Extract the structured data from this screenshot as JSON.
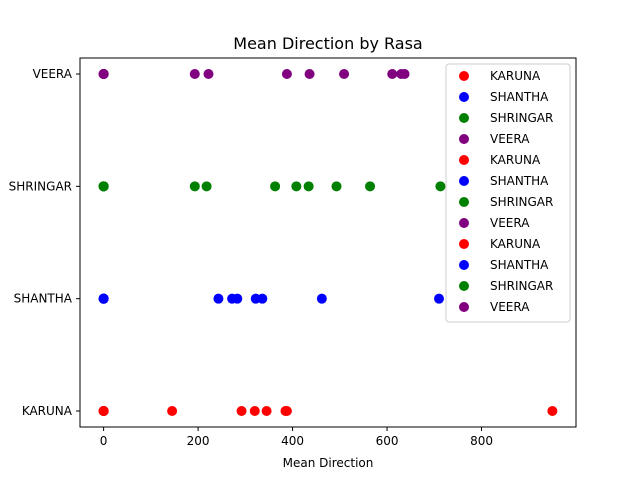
{
  "chart_data": {
    "type": "scatter",
    "title": "Mean Direction by Rasa",
    "xlabel": "Mean Direction",
    "ylabel": "",
    "xlim": [
      -50,
      1000
    ],
    "xticks": [
      0,
      200,
      400,
      600,
      800
    ],
    "categories": [
      "KARUNA",
      "SHANTHA",
      "SHRINGAR",
      "VEERA"
    ],
    "series": [
      {
        "name": "KARUNA",
        "color": "#ff0000",
        "category": "KARUNA",
        "x": [
          0,
          0,
          0,
          145,
          292,
          320,
          345,
          385,
          388
        ]
      },
      {
        "name": "SHANTHA",
        "color": "#0000ff",
        "category": "SHANTHA",
        "x": [
          0,
          0,
          0,
          243,
          272,
          283,
          322,
          336,
          462,
          710
        ]
      },
      {
        "name": "SHRINGAR",
        "color": "#008000",
        "category": "SHRINGAR",
        "x": [
          0,
          0,
          0,
          193,
          218,
          363,
          408,
          434,
          493,
          564,
          713
        ]
      },
      {
        "name": "VEERA",
        "color": "#800080",
        "category": "VEERA",
        "x": [
          0,
          0,
          0,
          193,
          222,
          388,
          436,
          509,
          611,
          630,
          637
        ]
      },
      {
        "name": "KARUNA",
        "color": "#ff0000",
        "category": "KARUNA",
        "x": [
          0,
          950
        ]
      },
      {
        "name": "SHANTHA",
        "color": "#0000ff",
        "category": "SHANTHA",
        "x": [
          0
        ]
      },
      {
        "name": "SHRINGAR",
        "color": "#008000",
        "category": "SHRINGAR",
        "x": [
          0
        ]
      },
      {
        "name": "VEERA",
        "color": "#800080",
        "category": "VEERA",
        "x": [
          0
        ]
      },
      {
        "name": "KARUNA",
        "color": "#ff0000",
        "category": "KARUNA",
        "x": [
          0
        ]
      },
      {
        "name": "SHANTHA",
        "color": "#0000ff",
        "category": "SHANTHA",
        "x": [
          0
        ]
      },
      {
        "name": "SHRINGAR",
        "color": "#008000",
        "category": "SHRINGAR",
        "x": [
          0
        ]
      },
      {
        "name": "VEERA",
        "color": "#800080",
        "category": "VEERA",
        "x": [
          0
        ]
      }
    ],
    "legend": {
      "placement": "top-right"
    },
    "grid": false
  }
}
